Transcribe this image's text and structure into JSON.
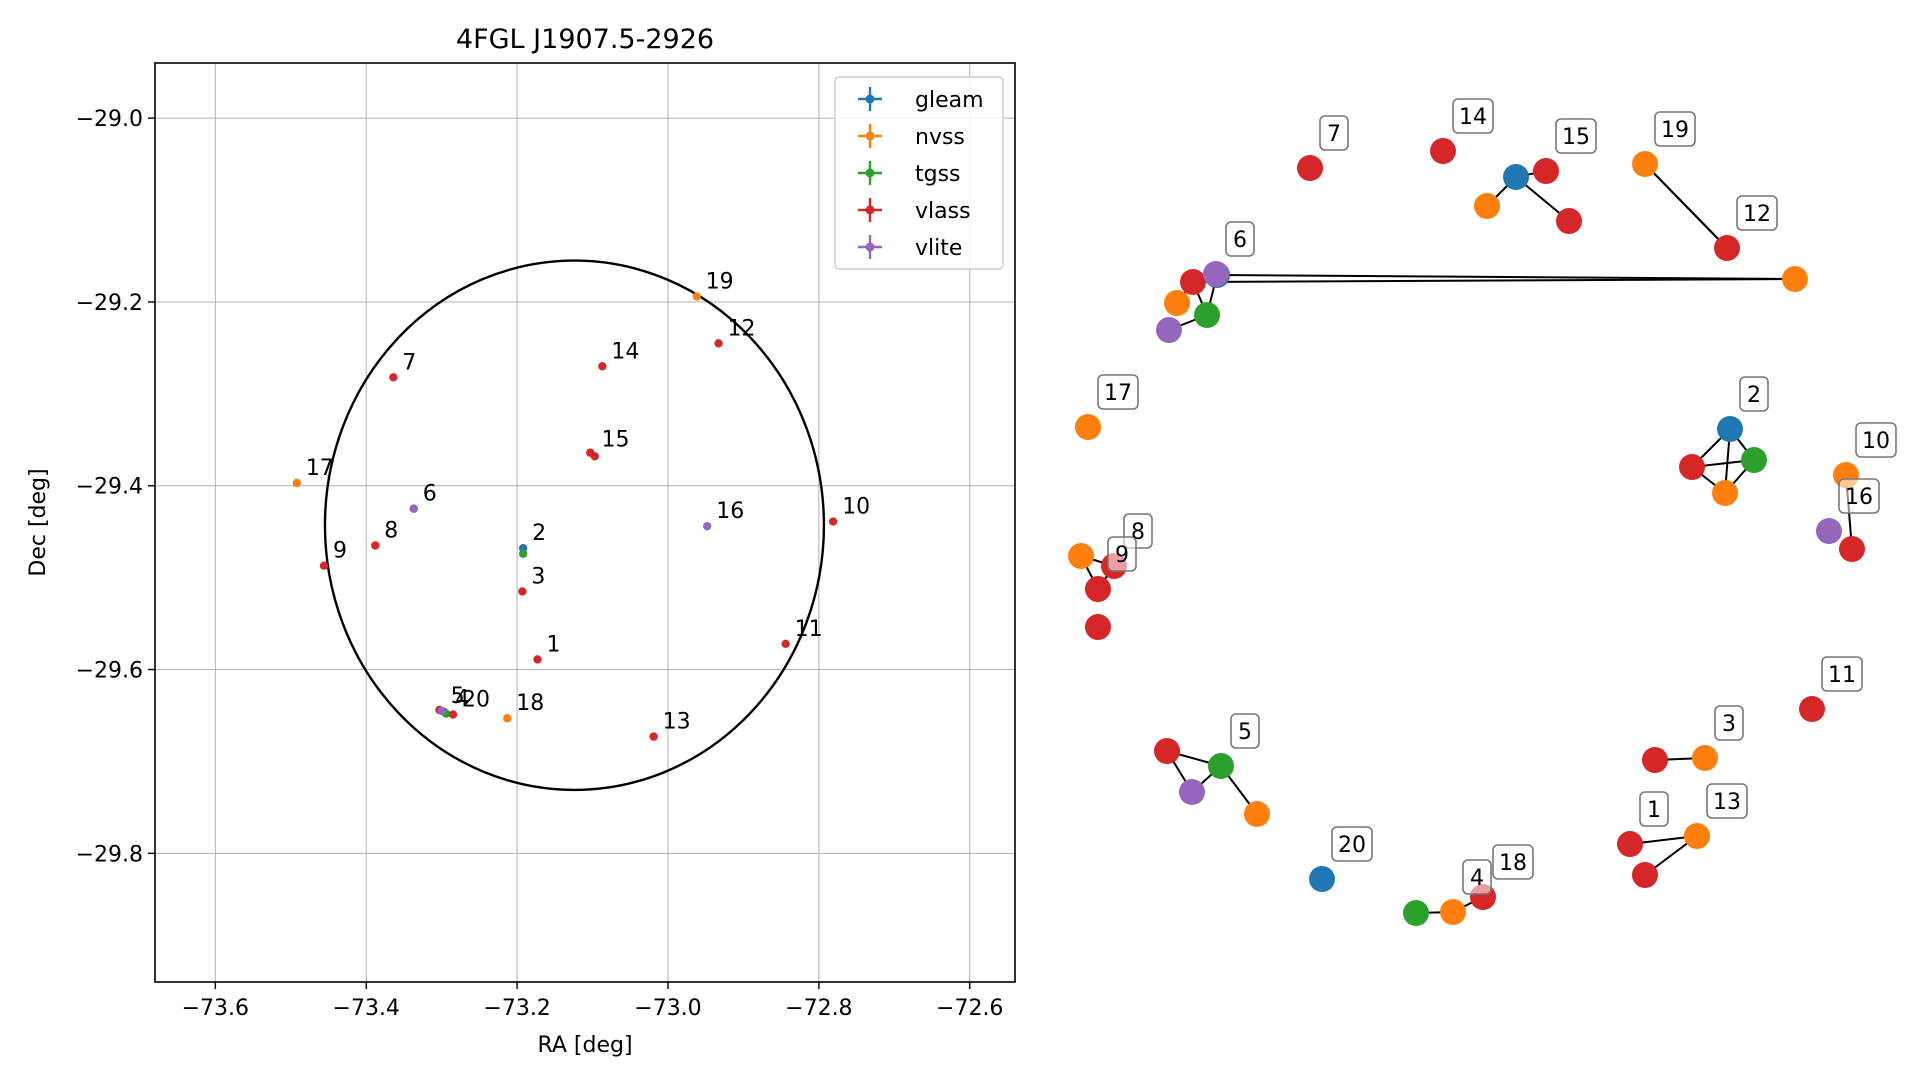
{
  "colors": {
    "gleam": "#1f77b4",
    "nvss": "#ff7f0e",
    "tgss": "#2ca02c",
    "vlass": "#d62728",
    "vlite": "#9467bd",
    "edge": "#000000",
    "grid": "#b0b0b0"
  },
  "chart_data": [
    {
      "type": "scatter",
      "title": "4FGL J1907.5-2926",
      "xlabel": "RA [deg]",
      "ylabel": "Dec [deg]",
      "xlim": [
        -73.68,
        -72.54
      ],
      "ylim": [
        -29.94,
        -28.94
      ],
      "xticks": [
        -73.6,
        -73.4,
        -73.2,
        -73.0,
        -72.8,
        -72.6
      ],
      "xtick_labels": [
        "−73.6",
        "−73.4",
        "−73.2",
        "−73.0",
        "−72.8",
        "−72.6"
      ],
      "yticks": [
        -29.0,
        -29.2,
        -29.4,
        -29.6,
        -29.8
      ],
      "ytick_labels": [
        "−29.0",
        "−29.2",
        "−29.4",
        "−29.6",
        "−29.8"
      ],
      "grid": true,
      "legend_position": "top-right",
      "series": [
        {
          "name": "gleam",
          "x": [
            -73.192,
            -73.297
          ],
          "y": [
            -29.468,
            -29.646
          ]
        },
        {
          "name": "nvss",
          "x": [
            -72.962,
            -73.492,
            -73.213
          ],
          "y": [
            -29.194,
            -29.397,
            -29.653
          ]
        },
        {
          "name": "tgss",
          "x": [
            -73.192,
            -73.294
          ],
          "y": [
            -29.474,
            -29.648
          ]
        },
        {
          "name": "vlass",
          "x": [
            -73.173,
            -73.193,
            -73.337,
            -73.364,
            -73.388,
            -73.456,
            -72.781,
            -72.844,
            -72.933,
            -73.019,
            -73.087,
            -73.103,
            -73.097,
            -73.285,
            -73.303
          ],
          "y": [
            -29.589,
            -29.515,
            -29.425,
            -29.282,
            -29.465,
            -29.487,
            -29.439,
            -29.572,
            -29.245,
            -29.673,
            -29.27,
            -29.364,
            -29.368,
            -29.649,
            -29.644
          ]
        },
        {
          "name": "vlite",
          "x": [
            -73.337,
            -72.948,
            -73.3
          ],
          "y": [
            -29.425,
            -29.444,
            -29.645
          ]
        }
      ],
      "circle": {
        "center_ra": -73.124,
        "center_dec": -29.443,
        "radius_deg": 0.288
      },
      "annotations": [
        {
          "text": "1",
          "x": -73.173,
          "y": -29.589
        },
        {
          "text": "2",
          "x": -73.192,
          "y": -29.468
        },
        {
          "text": "3",
          "x": -73.193,
          "y": -29.515
        },
        {
          "text": "6",
          "x": -73.337,
          "y": -29.425
        },
        {
          "text": "7",
          "x": -73.364,
          "y": -29.282
        },
        {
          "text": "8",
          "x": -73.388,
          "y": -29.465
        },
        {
          "text": "9",
          "x": -73.456,
          "y": -29.487
        },
        {
          "text": "10",
          "x": -72.781,
          "y": -29.439
        },
        {
          "text": "11",
          "x": -72.844,
          "y": -29.572
        },
        {
          "text": "12",
          "x": -72.933,
          "y": -29.245
        },
        {
          "text": "13",
          "x": -73.019,
          "y": -29.673
        },
        {
          "text": "14",
          "x": -73.087,
          "y": -29.27
        },
        {
          "text": "15",
          "x": -73.1,
          "y": -29.366
        },
        {
          "text": "16",
          "x": -72.948,
          "y": -29.444
        },
        {
          "text": "17",
          "x": -73.492,
          "y": -29.397
        },
        {
          "text": "18",
          "x": -73.213,
          "y": -29.653
        },
        {
          "text": "19",
          "x": -72.962,
          "y": -29.194
        },
        {
          "text": "20",
          "x": -73.285,
          "y": -29.649
        },
        {
          "text": "5",
          "x": -73.3,
          "y": -29.645
        },
        {
          "text": "4",
          "x": -73.294,
          "y": -29.648
        }
      ]
    },
    {
      "type": "network",
      "nodes": [
        {
          "id": 0,
          "catalog": "vlass",
          "label": "7"
        },
        {
          "id": 1,
          "catalog": "vlass",
          "label": "14"
        },
        {
          "id": 2,
          "catalog": "gleam",
          "label": ""
        },
        {
          "id": 3,
          "catalog": "vlass",
          "label": "15"
        },
        {
          "id": 4,
          "catalog": "nvss",
          "label": ""
        },
        {
          "id": 5,
          "catalog": "vlass",
          "label": ""
        },
        {
          "id": 6,
          "catalog": "nvss",
          "label": "19"
        },
        {
          "id": 7,
          "catalog": "vlass",
          "label": "12"
        },
        {
          "id": 8,
          "catalog": "nvss",
          "label": ""
        },
        {
          "id": 9,
          "catalog": "gleam",
          "label": ""
        },
        {
          "id": 10,
          "catalog": "vlass",
          "label": ""
        },
        {
          "id": 11,
          "catalog": "nvss",
          "label": ""
        },
        {
          "id": 12,
          "catalog": "tgss",
          "label": ""
        },
        {
          "id": 13,
          "catalog": "vlite",
          "label": ""
        },
        {
          "id": 14,
          "catalog": "vlite",
          "label": "6"
        },
        {
          "id": 15,
          "catalog": "nvss",
          "label": "17"
        },
        {
          "id": 16,
          "catalog": "gleam",
          "label": "2"
        },
        {
          "id": 17,
          "catalog": "vlass",
          "label": ""
        },
        {
          "id": 18,
          "catalog": "tgss",
          "label": ""
        },
        {
          "id": 19,
          "catalog": "nvss",
          "label": ""
        },
        {
          "id": 20,
          "catalog": "nvss",
          "label": "10"
        },
        {
          "id": 21,
          "catalog": "vlite",
          "label": "16"
        },
        {
          "id": 22,
          "catalog": "vlass",
          "label": ""
        },
        {
          "id": 23,
          "catalog": "nvss",
          "label": ""
        },
        {
          "id": 24,
          "catalog": "vlass",
          "label": "8"
        },
        {
          "id": 25,
          "catalog": "vlass",
          "label": "9"
        },
        {
          "id": 26,
          "catalog": "vlass",
          "label": ""
        },
        {
          "id": 27,
          "catalog": "vlass",
          "label": "11"
        },
        {
          "id": 28,
          "catalog": "vlass",
          "label": ""
        },
        {
          "id": 29,
          "catalog": "tgss",
          "label": "5"
        },
        {
          "id": 30,
          "catalog": "vlite",
          "label": ""
        },
        {
          "id": 31,
          "catalog": "nvss",
          "label": ""
        },
        {
          "id": 32,
          "catalog": "vlass",
          "label": ""
        },
        {
          "id": 33,
          "catalog": "nvss",
          "label": "3"
        },
        {
          "id": 34,
          "catalog": "vlass",
          "label": "1"
        },
        {
          "id": 35,
          "catalog": "nvss",
          "label": "13"
        },
        {
          "id": 36,
          "catalog": "vlass",
          "label": ""
        },
        {
          "id": 37,
          "catalog": "gleam",
          "label": "20"
        },
        {
          "id": 38,
          "catalog": "tgss",
          "label": ""
        },
        {
          "id": 39,
          "catalog": "nvss",
          "label": "4"
        },
        {
          "id": 40,
          "catalog": "vlass",
          "label": "18"
        }
      ],
      "edges": [
        [
          2,
          3
        ],
        [
          2,
          4
        ],
        [
          2,
          5
        ],
        [
          6,
          7
        ],
        [
          6,
          7
        ],
        [
          8,
          9
        ],
        [
          8,
          10
        ],
        [
          9,
          10
        ],
        [
          10,
          12
        ],
        [
          11,
          10
        ],
        [
          13,
          12
        ],
        [
          12,
          9
        ],
        [
          16,
          17
        ],
        [
          16,
          18
        ],
        [
          16,
          19
        ],
        [
          17,
          18
        ],
        [
          17,
          19
        ],
        [
          18,
          19
        ],
        [
          20,
          22
        ],
        [
          23,
          24
        ],
        [
          23,
          25
        ],
        [
          24,
          25
        ],
        [
          28,
          29
        ],
        [
          28,
          30
        ],
        [
          29,
          30
        ],
        [
          29,
          31
        ],
        [
          32,
          33
        ],
        [
          34,
          35
        ],
        [
          36,
          35
        ],
        [
          38,
          39
        ],
        [
          39,
          40
        ]
      ]
    }
  ]
}
